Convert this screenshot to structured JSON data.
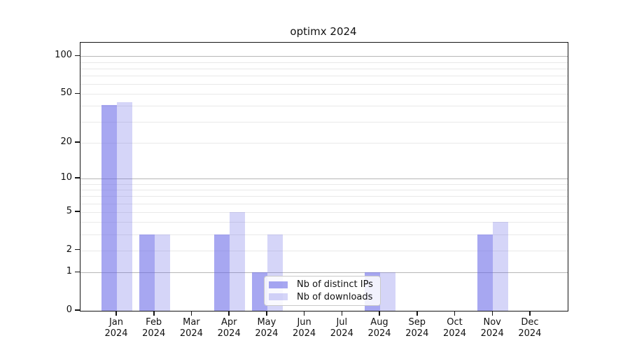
{
  "title": "optimx 2024",
  "chart_data": {
    "type": "bar",
    "title": "optimx 2024",
    "categories": [
      "Jan 2024",
      "Feb 2024",
      "Mar 2024",
      "Apr 2024",
      "May 2024",
      "Jun 2024",
      "Jul 2024",
      "Aug 2024",
      "Sep 2024",
      "Oct 2024",
      "Nov 2024",
      "Dec 2024"
    ],
    "series": [
      {
        "name": "Nb of distinct IPs",
        "fill": "rgba(100,100,230,0.57)",
        "values": [
          41,
          3,
          0,
          3,
          1,
          0,
          0,
          1,
          0,
          0,
          3,
          0
        ]
      },
      {
        "name": "Nb of downloads",
        "fill": "rgba(100,100,230,0.27)",
        "values": [
          43,
          3,
          0,
          5,
          3,
          0,
          0,
          1,
          0,
          0,
          4,
          0
        ]
      }
    ],
    "xlabel": "",
    "ylabel": "",
    "yscale": "log1p",
    "ylim": [
      0,
      131
    ],
    "yticks": [
      0,
      1,
      2,
      5,
      10,
      20,
      50,
      100
    ],
    "grid_major": [
      1,
      10,
      100
    ],
    "grid_minor": [
      2,
      3,
      4,
      5,
      6,
      7,
      8,
      9,
      20,
      30,
      40,
      50,
      60,
      70,
      80,
      90
    ],
    "grid": "on",
    "legend_position": "lower-center-inside"
  },
  "colors": {
    "bar_base": "#6464e6",
    "grid_major": "#b6b6b6",
    "grid_minor": "#e9e9e9",
    "axis": "#141414",
    "legend_border": "#c9c9c9"
  }
}
